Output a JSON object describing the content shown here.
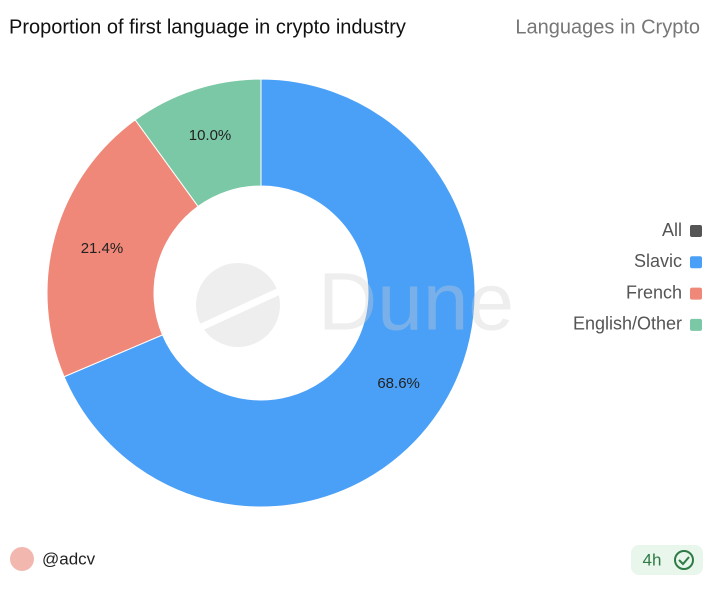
{
  "chart_data": {
    "type": "donut",
    "title": "Proportion of first language in crypto industry",
    "subtitle": "Languages in Crypto",
    "categories": [
      "Slavic",
      "French",
      "English/Other"
    ],
    "values": [
      68.6,
      21.4,
      10.0
    ],
    "value_labels": [
      "68.6%",
      "21.4%",
      "10.0%"
    ],
    "colors": [
      "#4aa0f7",
      "#ef8878",
      "#7bc8a6"
    ],
    "legend_all": {
      "label": "All",
      "color": "#555555"
    },
    "watermark": "Dune"
  },
  "footer": {
    "author": "@adcv",
    "age": "4h"
  }
}
